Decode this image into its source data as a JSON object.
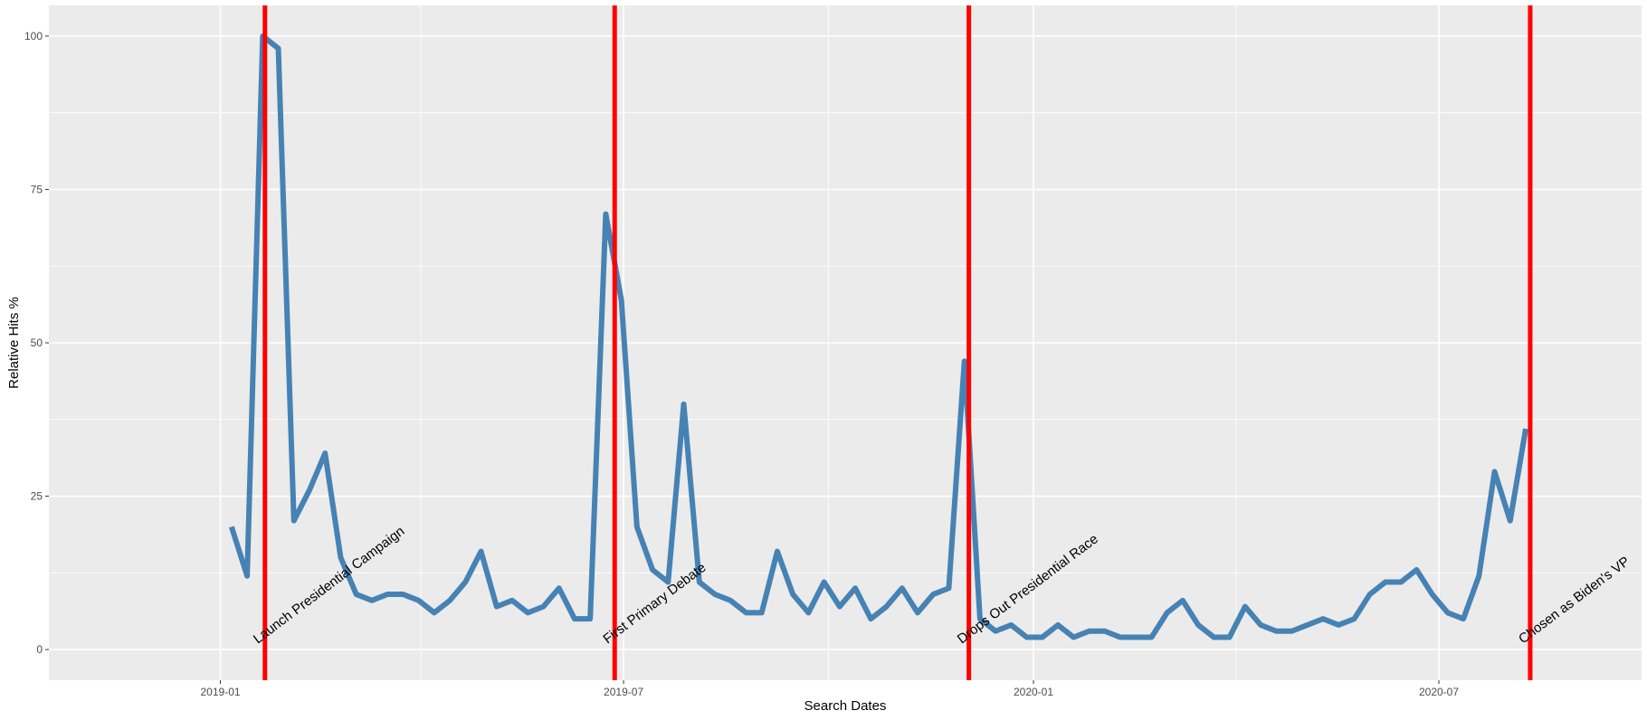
{
  "chart_data": {
    "type": "line",
    "title": "",
    "xlabel": "Search Dates",
    "ylabel": "Relative Hits %",
    "grid": true,
    "legend": "none",
    "x_range": [
      "2018-10-16",
      "2020-09-30"
    ],
    "ylim": [
      -5,
      105
    ],
    "y_ticks": [
      0,
      25,
      50,
      75,
      100
    ],
    "x_ticks": [
      {
        "date": "2019-01-01",
        "label": "2019-01"
      },
      {
        "date": "2019-07-01",
        "label": "2019-07"
      },
      {
        "date": "2020-01-01",
        "label": "2020-01"
      },
      {
        "date": "2020-07-01",
        "label": "2020-07"
      }
    ],
    "x_minor_ticks": [
      "2018-10-01",
      "2019-04-01",
      "2019-10-01",
      "2020-04-01",
      "2020-10-01"
    ],
    "colors": {
      "panel": "#ebebeb",
      "grid": "#ffffff",
      "line": "#4682b4",
      "vline": "#ff0000"
    },
    "series": [
      {
        "x": [
          "2019-01-06",
          "2019-01-13",
          "2019-01-20",
          "2019-01-27",
          "2019-02-03",
          "2019-02-10",
          "2019-02-17",
          "2019-02-24",
          "2019-03-03",
          "2019-03-10",
          "2019-03-17",
          "2019-03-24",
          "2019-03-31",
          "2019-04-07",
          "2019-04-14",
          "2019-04-21",
          "2019-04-28",
          "2019-05-05",
          "2019-05-12",
          "2019-05-19",
          "2019-05-26",
          "2019-06-02",
          "2019-06-09",
          "2019-06-16",
          "2019-06-23",
          "2019-06-30",
          "2019-07-07",
          "2019-07-14",
          "2019-07-21",
          "2019-07-28",
          "2019-08-04",
          "2019-08-11",
          "2019-08-18",
          "2019-08-25",
          "2019-09-01",
          "2019-09-08",
          "2019-09-15",
          "2019-09-22",
          "2019-09-29",
          "2019-10-06",
          "2019-10-13",
          "2019-10-20",
          "2019-10-27",
          "2019-11-03",
          "2019-11-10",
          "2019-11-17",
          "2019-11-24",
          "2019-12-01",
          "2019-12-08",
          "2019-12-15",
          "2019-12-22",
          "2019-12-29",
          "2020-01-05",
          "2020-01-12",
          "2020-01-19",
          "2020-01-26",
          "2020-02-02",
          "2020-02-09",
          "2020-02-16",
          "2020-02-23",
          "2020-03-01",
          "2020-03-08",
          "2020-03-15",
          "2020-03-22",
          "2020-03-29",
          "2020-04-05",
          "2020-04-12",
          "2020-04-19",
          "2020-04-26",
          "2020-05-03",
          "2020-05-10",
          "2020-05-17",
          "2020-05-24",
          "2020-05-31",
          "2020-06-07",
          "2020-06-14",
          "2020-06-21",
          "2020-06-28",
          "2020-07-05",
          "2020-07-12",
          "2020-07-19",
          "2020-07-26",
          "2020-08-02",
          "2020-08-09"
        ],
        "values": [
          20,
          12,
          100,
          98,
          21,
          26,
          32,
          15,
          9,
          8,
          9,
          9,
          8,
          6,
          8,
          11,
          16,
          7,
          8,
          6,
          7,
          10,
          5,
          5,
          71,
          57,
          20,
          13,
          11,
          40,
          11,
          9,
          8,
          6,
          6,
          16,
          9,
          6,
          11,
          7,
          10,
          5,
          7,
          10,
          6,
          9,
          10,
          47,
          5,
          3,
          4,
          2,
          2,
          4,
          2,
          3,
          3,
          2,
          2,
          2,
          6,
          8,
          4,
          2,
          2,
          7,
          4,
          3,
          3,
          4,
          5,
          4,
          5,
          9,
          11,
          11,
          13,
          9,
          6,
          5,
          12,
          29,
          21,
          36
        ]
      }
    ],
    "vlines": [
      {
        "date": "2019-01-21",
        "label": "Launch Presidential Campaign"
      },
      {
        "date": "2019-06-27",
        "label": "First Primary Debate"
      },
      {
        "date": "2019-12-03",
        "label": "Drops Out Presidential Race"
      },
      {
        "date": "2020-08-11",
        "label": "Chosen as Biden's VP"
      }
    ]
  }
}
